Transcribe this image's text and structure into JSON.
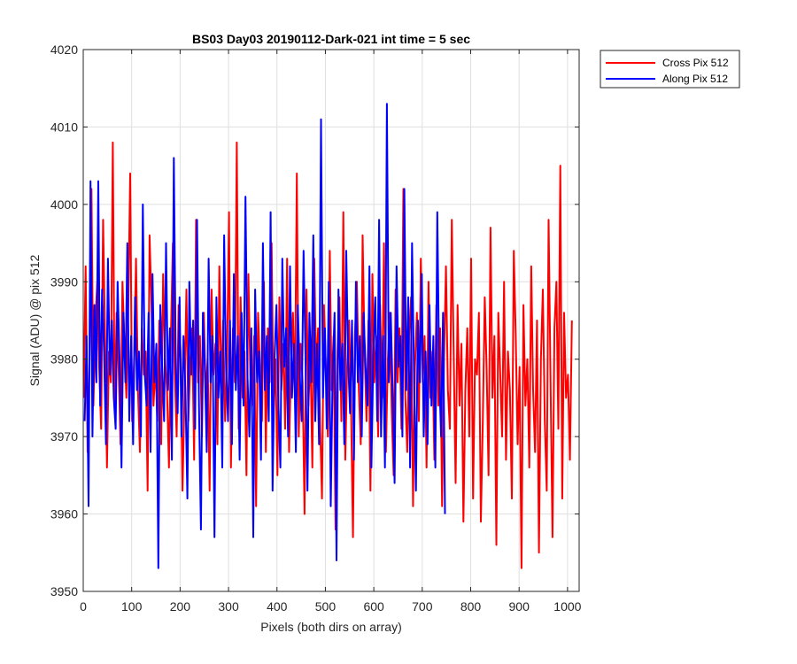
{
  "chart_data": {
    "type": "line",
    "title": "BS03 Day03 20190112-Dark-021 int time = 5 sec",
    "xlabel": "Pixels (both dirs on array)",
    "ylabel": "Signal (ADU) @ pix 512",
    "xlim": [
      0,
      1024
    ],
    "ylim": [
      3950,
      4020
    ],
    "xticks": [
      0,
      100,
      200,
      300,
      400,
      500,
      600,
      700,
      800,
      900,
      1000
    ],
    "yticks": [
      3950,
      3960,
      3970,
      3980,
      3990,
      4000,
      4010,
      4020
    ],
    "grid": true,
    "legend_position": "outside-top-right",
    "series": [
      {
        "name": "Cross Pix 512",
        "color": "#ff0000",
        "x_start": 1,
        "x_step": 4,
        "values": [
          3975,
          3992,
          3968,
          3980,
          4002,
          3974,
          3985,
          3990,
          3979,
          3971,
          3998,
          3983,
          3966,
          3981,
          3977,
          4008,
          3973,
          3986,
          3979,
          3969,
          3990,
          3982,
          3975,
          3987,
          4004,
          3972,
          3980,
          3993,
          3976,
          3968,
          3984,
          3978,
          3981,
          3963,
          3996,
          3987,
          3974,
          3979,
          3972,
          3985,
          3969,
          3991,
          3980,
          3976,
          3966,
          3983,
          3995,
          3978,
          3970,
          3987,
          3981,
          3963,
          3975,
          3989,
          3972,
          3980,
          3984,
          3967,
          3998,
          3977,
          3983,
          3970,
          3986,
          3975,
          3980,
          3963,
          3989,
          3978,
          3982,
          3969,
          3992,
          3976,
          3985,
          3972,
          3980,
          3999,
          3966,
          3984,
          3977,
          4008,
          3971,
          3988,
          3975,
          3981,
          3965,
          3991,
          3978,
          3974,
          3983,
          3961,
          3986,
          3979,
          3972,
          3990,
          3968,
          3984,
          3977,
          3995,
          3973,
          3980,
          3965,
          3988,
          3976,
          3982,
          3971,
          3993,
          3968,
          3979,
          3986,
          3975,
          4004,
          3970,
          3982,
          3977,
          3960,
          3989,
          3974,
          3981,
          3966,
          3993,
          3978,
          3984,
          3972,
          3962,
          3987,
          3979,
          3970,
          3994,
          3976,
          3983,
          3958,
          3981,
          3988,
          3972,
          3999,
          3967,
          3979,
          3985,
          3974,
          3957,
          3983,
          3990,
          3976,
          3969,
          3996,
          3981,
          3972,
          3985,
          3963,
          3991,
          3977,
          3983,
          3970,
          3987,
          3975,
          3995,
          3968,
          3980,
          3986,
          3973,
          3965,
          3989,
          3977,
          3984,
          3971,
          4002,
          3975,
          3968,
          3983,
          3988,
          3961,
          3979,
          3986,
          3972,
          3993,
          3977,
          3983,
          3966,
          3990,
          3975,
          3981,
          3967,
          3987,
          3974,
          3984,
          3961,
          3980,
          3992,
          3976,
          3971,
          3998,
          3980,
          3964,
          3987,
          3974,
          3982,
          3959,
          3976,
          3984,
          3970,
          3993,
          3962,
          3980,
          3978,
          3986,
          3959,
          3972,
          3988,
          3979,
          3965,
          3997,
          3975,
          3983,
          3956,
          3986,
          3978,
          3970,
          3990,
          3967,
          3981,
          3976,
          3962,
          3994,
          3983,
          3969,
          3979,
          3953,
          3987,
          3974,
          3980,
          3966,
          3992,
          3976,
          3968,
          3985,
          3955,
          3980,
          3989,
          3972,
          3963,
          3998,
          3977,
          3957,
          3984,
          3990,
          3971,
          4005,
          3962,
          3986,
          3975,
          3978,
          3967,
          3985
        ]
      },
      {
        "name": "Along Pix 512",
        "color": "#0000ff",
        "x_start": 3,
        "x_step": 4,
        "values": [
          3972,
          3983,
          3961,
          4003,
          3970,
          3987,
          3977,
          4003,
          3974,
          3989,
          3981,
          3969,
          3993,
          3978,
          3985,
          3975,
          3971,
          3990,
          3980,
          3966,
          3986,
          3977,
          3995,
          3972,
          3983,
          3969,
          3988,
          3976,
          3981,
          3970,
          4000,
          3978,
          3974,
          3986,
          3968,
          3991,
          3977,
          3982,
          3953,
          3987,
          3979,
          3972,
          3995,
          3976,
          3984,
          3967,
          4006,
          3979,
          3973,
          3988,
          3970,
          3983,
          3976,
          3962,
          3990,
          3978,
          3985,
          3971,
          3998,
          3974,
          3958,
          3986,
          3979,
          3968,
          3993,
          3977,
          3983,
          3957,
          3988,
          3975,
          3981,
          3966,
          3996,
          3979,
          3972,
          3985,
          3969,
          3991,
          3976,
          3983,
          3967,
          3986,
          3974,
          4001,
          3978,
          3970,
          3984,
          3957,
          3989,
          3977,
          3981,
          3967,
          3995,
          3976,
          3983,
          3972,
          3999,
          3963,
          3980,
          3987,
          3974,
          3966,
          3993,
          3979,
          3984,
          3970,
          3992,
          3975,
          3982,
          3968,
          3987,
          3978,
          3972,
          3994,
          3980,
          3963,
          3986,
          3977,
          3996,
          3972,
          3982,
          3969,
          4011,
          3975,
          3984,
          3971,
          3990,
          3961,
          3978,
          3986,
          3954,
          3989,
          3976,
          3982,
          3969,
          3994,
          3980,
          3973,
          3985,
          3967,
          3990,
          3977,
          3983,
          3970,
          3986,
          3979,
          3974,
          3992,
          3966,
          3981,
          3988,
          3972,
          3998,
          3970,
          3983,
          3966,
          4013,
          3977,
          3986,
          3975,
          3964,
          3992,
          3979,
          3983,
          3970,
          4002,
          3976,
          3988,
          3966,
          3995,
          3978,
          3963,
          3985,
          3977,
          3991,
          3970,
          3981,
          3969,
          3987,
          3974,
          3983,
          3966,
          3999,
          3978,
          3970,
          3986,
          3960
        ]
      }
    ]
  }
}
